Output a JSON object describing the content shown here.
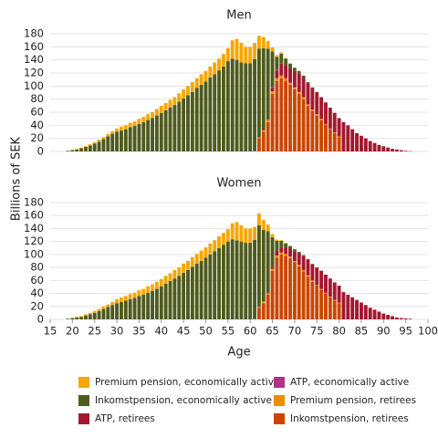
{
  "chart_data": [
    {
      "type": "bar",
      "stacked": true,
      "title": "Men",
      "ylabel": "Billions of SEK",
      "x": [
        19,
        20,
        21,
        22,
        23,
        24,
        25,
        26,
        27,
        28,
        29,
        30,
        31,
        32,
        33,
        34,
        35,
        36,
        37,
        38,
        39,
        40,
        41,
        42,
        43,
        44,
        45,
        46,
        47,
        48,
        49,
        50,
        51,
        52,
        53,
        54,
        55,
        56,
        57,
        58,
        59,
        60,
        61,
        62,
        63,
        64,
        65,
        66,
        67,
        68,
        69,
        70,
        71,
        72,
        73,
        74,
        75,
        76,
        77,
        78,
        79,
        80,
        81,
        82,
        83,
        84,
        85,
        86,
        87,
        88,
        89,
        90,
        91,
        92,
        93,
        94,
        95,
        96
      ],
      "xlim": [
        15,
        100
      ],
      "ylim": [
        0,
        180
      ],
      "yticks": [
        0,
        20,
        40,
        60,
        80,
        100,
        120,
        140,
        160,
        180
      ],
      "grid": true,
      "series": [
        {
          "name": "Premium pension, economically active",
          "color": "#f5a700",
          "values": [
            0,
            0.5,
            1,
            1,
            1,
            2,
            2,
            3,
            3,
            4,
            4,
            5,
            6,
            6,
            7,
            7,
            8,
            8,
            9,
            9,
            10,
            11,
            11,
            12,
            12,
            13,
            14,
            14,
            15,
            15,
            16,
            16,
            17,
            18,
            18,
            19,
            20,
            28,
            32,
            30,
            25,
            25,
            25,
            20,
            17,
            12,
            6,
            3,
            2,
            1,
            1,
            0.5,
            0.5,
            0,
            0,
            0,
            0,
            0,
            0,
            0,
            0,
            0,
            0,
            0,
            0,
            0,
            0,
            0,
            0,
            0,
            0,
            0,
            0,
            0,
            0,
            0,
            0,
            0
          ]
        },
        {
          "name": "ATP, economically active",
          "color": "#b0338a",
          "values": [
            0,
            0,
            0,
            0,
            0,
            0,
            0,
            0,
            0,
            0,
            0,
            0,
            0,
            0,
            0,
            0,
            0,
            0,
            0,
            0,
            0,
            0,
            0,
            0,
            0,
            0,
            0,
            0,
            0,
            0,
            0,
            0,
            0,
            0,
            0,
            0,
            0,
            0,
            0,
            0,
            0,
            0,
            1,
            1,
            1,
            1,
            1,
            0.5,
            0.5,
            0,
            0,
            0,
            0,
            0,
            0,
            0,
            0,
            0,
            0,
            0,
            0,
            0,
            0,
            0,
            0,
            0,
            0,
            0,
            0,
            0,
            0,
            0,
            0,
            0,
            0,
            0,
            0,
            0
          ]
        },
        {
          "name": "Inkomstpension, economically active",
          "color": "#4e5b1e",
          "values": [
            1,
            2,
            3,
            5,
            7,
            9,
            12,
            15,
            19,
            23,
            27,
            30,
            32,
            34,
            37,
            39,
            42,
            45,
            48,
            51,
            55,
            59,
            63,
            67,
            71,
            76,
            81,
            86,
            91,
            97,
            102,
            107,
            113,
            118,
            124,
            130,
            138,
            142,
            140,
            136,
            135,
            135,
            140,
            135,
            125,
            108,
            55,
            20,
            15,
            10,
            7,
            5,
            4,
            3,
            2,
            1,
            1,
            0,
            0,
            0,
            0,
            0,
            0,
            0,
            0,
            0,
            0,
            0,
            0,
            0,
            0,
            0,
            0,
            0,
            0,
            0,
            0,
            0
          ]
        },
        {
          "name": "Premium pension, retirees",
          "color": "#ef8b00",
          "values": [
            0,
            0,
            0,
            0,
            0,
            0,
            0,
            0,
            0,
            0,
            0,
            0,
            0,
            0,
            0,
            0,
            0,
            0,
            0,
            0,
            0,
            0,
            0,
            0,
            0,
            0,
            0,
            0,
            0,
            0,
            0,
            0,
            0,
            0,
            0,
            0,
            0,
            0,
            0,
            0,
            0,
            0,
            0,
            1,
            2,
            3,
            4,
            4,
            4,
            4,
            3,
            3,
            3,
            3,
            2,
            2,
            2,
            2,
            1,
            1,
            1,
            1,
            0,
            0,
            0,
            0,
            0,
            0,
            0,
            0,
            0,
            0,
            0,
            0,
            0,
            0,
            0,
            0
          ]
        },
        {
          "name": "ATP, retirees",
          "color": "#a3172f",
          "values": [
            0,
            0,
            0,
            0,
            0,
            0,
            0,
            0,
            0,
            0,
            0,
            0,
            0,
            0,
            0,
            0,
            0,
            0,
            0,
            0,
            0,
            0,
            0,
            0,
            0,
            0,
            0,
            0,
            0,
            0,
            0,
            0,
            0,
            0,
            0,
            0,
            0,
            0,
            0,
            0,
            0,
            0,
            0,
            0,
            0,
            0,
            5,
            12,
            18,
            20,
            22,
            25,
            28,
            30,
            32,
            33,
            33,
            33,
            33,
            32,
            30,
            28,
            45,
            40,
            34,
            28,
            24,
            20,
            16,
            13,
            10,
            8,
            6,
            4,
            3,
            2,
            1,
            0.5
          ]
        },
        {
          "name": "Inkomstpension, retirees",
          "color": "#c94600",
          "values": [
            0,
            0,
            0,
            0,
            0,
            0,
            0,
            0,
            0,
            0,
            0,
            0,
            0,
            0,
            0,
            0,
            0,
            0,
            0,
            0,
            0,
            0,
            0,
            0,
            0,
            0,
            0,
            0,
            0,
            0,
            0,
            0,
            0,
            0,
            0,
            0,
            0,
            0,
            0,
            0,
            0,
            0,
            0,
            20,
            30,
            45,
            88,
            108,
            112,
            108,
            102,
            95,
            88,
            80,
            70,
            62,
            55,
            48,
            41,
            34,
            28,
            22,
            0,
            0,
            0,
            0,
            0,
            0,
            0,
            0,
            0,
            0,
            0,
            0,
            0,
            0,
            0,
            0
          ]
        }
      ]
    },
    {
      "type": "bar",
      "stacked": true,
      "title": "Women",
      "xlabel": "Age",
      "x": [
        19,
        20,
        21,
        22,
        23,
        24,
        25,
        26,
        27,
        28,
        29,
        30,
        31,
        32,
        33,
        34,
        35,
        36,
        37,
        38,
        39,
        40,
        41,
        42,
        43,
        44,
        45,
        46,
        47,
        48,
        49,
        50,
        51,
        52,
        53,
        54,
        55,
        56,
        57,
        58,
        59,
        60,
        61,
        62,
        63,
        64,
        65,
        66,
        67,
        68,
        69,
        70,
        71,
        72,
        73,
        74,
        75,
        76,
        77,
        78,
        79,
        80,
        81,
        82,
        83,
        84,
        85,
        86,
        87,
        88,
        89,
        90,
        91,
        92,
        93,
        94,
        95,
        96
      ],
      "xlim": [
        15,
        100
      ],
      "xticks": [
        15,
        20,
        25,
        30,
        35,
        40,
        45,
        50,
        55,
        60,
        65,
        70,
        75,
        80,
        85,
        90,
        95,
        100
      ],
      "ylim": [
        0,
        180
      ],
      "yticks": [
        0,
        20,
        40,
        60,
        80,
        100,
        120,
        140,
        160,
        180
      ],
      "grid": true,
      "series": [
        {
          "color": "#f5a700",
          "values": [
            0,
            0.5,
            1,
            1,
            2,
            2,
            3,
            3,
            4,
            4,
            5,
            6,
            7,
            7,
            8,
            8,
            9,
            9,
            10,
            10,
            11,
            11,
            12,
            12,
            13,
            13,
            14,
            14,
            15,
            15,
            16,
            16,
            17,
            17,
            18,
            18,
            19,
            25,
            28,
            25,
            22,
            22,
            20,
            18,
            15,
            10,
            5,
            2,
            1,
            1,
            0.5,
            0,
            0,
            0,
            0,
            0,
            0,
            0,
            0,
            0,
            0,
            0,
            0,
            0,
            0,
            0,
            0,
            0,
            0,
            0,
            0,
            0,
            0,
            0,
            0,
            0,
            0,
            0
          ]
        },
        {
          "color": "#b0338a",
          "values": [
            0,
            0,
            0,
            0,
            0,
            0,
            0,
            0,
            0,
            0,
            0,
            0,
            0,
            0,
            0,
            0,
            0,
            0,
            0,
            0,
            0,
            0,
            0,
            0,
            0,
            0,
            0,
            0,
            0,
            0,
            0,
            0,
            0,
            0,
            0,
            0,
            0,
            0,
            0,
            0,
            0,
            0,
            0.5,
            1,
            1,
            1,
            0.5,
            0,
            0,
            0,
            0,
            0,
            0,
            0,
            0,
            0,
            0,
            0,
            0,
            0,
            0,
            0,
            0,
            0,
            0,
            0,
            0,
            0,
            0,
            0,
            0,
            0,
            0,
            0,
            0,
            0,
            0,
            0
          ]
        },
        {
          "color": "#4e5b1e",
          "values": [
            1,
            2,
            3,
            4,
            6,
            8,
            10,
            13,
            16,
            19,
            22,
            25,
            27,
            29,
            31,
            33,
            36,
            38,
            41,
            44,
            47,
            51,
            55,
            59,
            63,
            67,
            72,
            76,
            81,
            86,
            90,
            95,
            100,
            105,
            110,
            115,
            120,
            123,
            122,
            120,
            118,
            118,
            122,
            125,
            110,
            95,
            45,
            15,
            10,
            6,
            4,
            3,
            2,
            1,
            1,
            0.5,
            0,
            0,
            0,
            0,
            0,
            0,
            0,
            0,
            0,
            0,
            0,
            0,
            0,
            0,
            0,
            0,
            0,
            0,
            0,
            0,
            0,
            0
          ]
        },
        {
          "color": "#ef8b00",
          "values": [
            0,
            0,
            0,
            0,
            0,
            0,
            0,
            0,
            0,
            0,
            0,
            0,
            0,
            0,
            0,
            0,
            0,
            0,
            0,
            0,
            0,
            0,
            0,
            0,
            0,
            0,
            0,
            0,
            0,
            0,
            0,
            0,
            0,
            0,
            0,
            0,
            0,
            0,
            0,
            0,
            0,
            0,
            0,
            1,
            2,
            2,
            3,
            3,
            3,
            3,
            3,
            2,
            2,
            2,
            2,
            2,
            1,
            1,
            1,
            1,
            1,
            1,
            0,
            0,
            0,
            0,
            0,
            0,
            0,
            0,
            0,
            0,
            0,
            0,
            0,
            0,
            0,
            0
          ]
        },
        {
          "color": "#a3172f",
          "values": [
            0,
            0,
            0,
            0,
            0,
            0,
            0,
            0,
            0,
            0,
            0,
            0,
            0,
            0,
            0,
            0,
            0,
            0,
            0,
            0,
            0,
            0,
            0,
            0,
            0,
            0,
            0,
            0,
            0,
            0,
            0,
            0,
            0,
            0,
            0,
            0,
            0,
            0,
            0,
            0,
            0,
            0,
            0,
            0,
            0,
            0,
            3,
            8,
            8,
            10,
            12,
            15,
            18,
            22,
            24,
            25,
            27,
            28,
            28,
            28,
            27,
            26,
            42,
            38,
            34,
            30,
            26,
            22,
            18,
            15,
            12,
            9,
            7,
            5,
            3,
            2,
            1.5,
            1
          ]
        },
        {
          "color": "#c94600",
          "values": [
            0,
            0,
            0,
            0,
            0,
            0,
            0,
            0,
            0,
            0,
            0,
            0,
            0,
            0,
            0,
            0,
            0,
            0,
            0,
            0,
            0,
            0,
            0,
            0,
            0,
            0,
            0,
            0,
            0,
            0,
            0,
            0,
            0,
            0,
            0,
            0,
            0,
            0,
            0,
            0,
            0,
            0,
            0,
            18,
            25,
            38,
            75,
            95,
            100,
            98,
            94,
            88,
            82,
            74,
            66,
            58,
            52,
            46,
            40,
            34,
            29,
            25,
            0,
            0,
            0,
            0,
            0,
            0,
            0,
            0,
            0,
            0,
            0,
            0,
            0,
            0,
            0,
            0
          ]
        }
      ]
    }
  ]
}
